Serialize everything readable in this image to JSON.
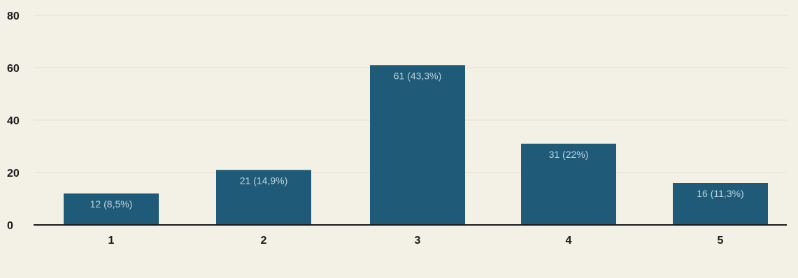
{
  "chart_data": {
    "type": "bar",
    "categories": [
      "1",
      "2",
      "3",
      "4",
      "5"
    ],
    "values": [
      12,
      21,
      61,
      31,
      16
    ],
    "data_labels": [
      "12 (8,5%)",
      "21 (14,9%)",
      "61 (43,3%)",
      "31 (22%)",
      "16 (11,3%)"
    ],
    "y_ticks": [
      "0",
      "20",
      "40",
      "60",
      "80"
    ],
    "ylim": [
      0,
      80
    ],
    "title": "",
    "xlabel": "",
    "ylabel": "",
    "grid": true,
    "legend": "none",
    "colors": {
      "bar": "#1f5a78",
      "background": "#f3f0e6",
      "axis": "#1a1a1a",
      "data_label": "#bcd3dc"
    }
  }
}
